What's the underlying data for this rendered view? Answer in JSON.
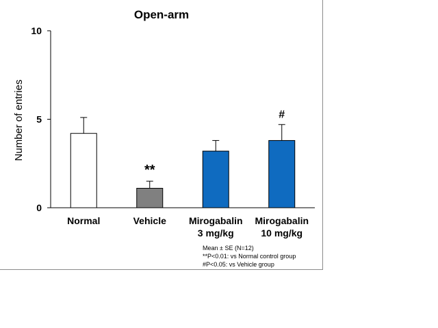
{
  "chart_data": {
    "type": "bar",
    "title": "Open-arm",
    "ylabel": "Number of entries",
    "xlabel": "",
    "ylim": [
      0,
      10
    ],
    "yticks": [
      0,
      5,
      10
    ],
    "grid": false,
    "categories": [
      [
        "Normal"
      ],
      [
        "Vehicle"
      ],
      [
        "Mirogabalin",
        "3 mg/kg"
      ],
      [
        "Mirogabalin",
        "10 mg/kg"
      ]
    ],
    "values": [
      4.2,
      1.1,
      3.2,
      3.8
    ],
    "errors": [
      0.9,
      0.4,
      0.6,
      0.9
    ],
    "colors": [
      "#ffffff",
      "#808080",
      "#0f6bc0",
      "#0f6bc0"
    ],
    "significance": [
      "",
      "**",
      "",
      "#"
    ],
    "footnotes": [
      "Mean ± SE (N=12)",
      "**P<0.01: vs Normal control group",
      "#P<0.05: vs Vehicle group"
    ]
  }
}
